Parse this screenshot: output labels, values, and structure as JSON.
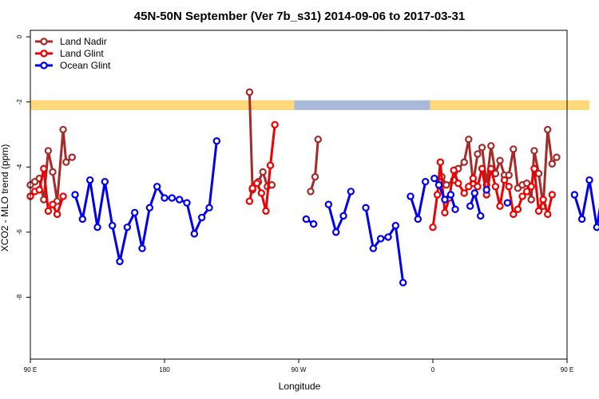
{
  "chart_data": {
    "type": "line",
    "title": "45N-50N September (Ver 7b_s31)   2014-09-06 to 2017-03-31",
    "xlabel": "Longitude",
    "ylabel": "XCO2 - MLO trend (ppm)",
    "xlim": [
      90,
      450
    ],
    "ylim": [
      -9.9,
      0.2
    ],
    "x_ticks": [
      {
        "value": 90,
        "label": "90 E"
      },
      {
        "value": 180,
        "label": "180"
      },
      {
        "value": 270,
        "label": "90 W"
      },
      {
        "value": 360,
        "label": "0"
      },
      {
        "value": 450,
        "label": "90 E"
      },
      {
        "value": 540,
        "label": "180"
      }
    ],
    "y_ticks": [
      {
        "value": 0,
        "label": "0"
      },
      {
        "value": -2,
        "label": "-2"
      },
      {
        "value": -4,
        "label": "-4"
      },
      {
        "value": -6,
        "label": "-6"
      },
      {
        "value": -8,
        "label": "-8"
      }
    ],
    "grid": false,
    "legend_position": "top-left",
    "land_mask": {
      "y_range": [
        -2.25,
        -1.95
      ],
      "land_color": "#FFD97A",
      "ocean_color": "#A8B9DC",
      "land_segments": [
        [
          90,
          267
        ],
        [
          358,
          465
        ]
      ]
    },
    "series": [
      {
        "name": "Land Nadir",
        "color": "#A52A2A",
        "segments": [
          [
            [
              90,
              -4.55
            ],
            [
              93,
              -4.45
            ],
            [
              96,
              -4.35
            ],
            [
              99,
              -5.0
            ],
            [
              102,
              -3.5
            ],
            [
              105,
              -4.15
            ],
            [
              108,
              -5.05
            ],
            [
              112,
              -2.85
            ],
            [
              114,
              -3.85
            ],
            [
              118,
              -3.7
            ]
          ],
          [
            [
              237,
              -1.7
            ],
            [
              239,
              -4.7
            ],
            [
              243,
              -4.45
            ],
            [
              246,
              -4.15
            ],
            [
              249,
              -4.6
            ],
            [
              252,
              -4.55
            ]
          ],
          [
            [
              278,
              -4.75
            ],
            [
              281,
              -4.3
            ],
            [
              283,
              -3.15
            ]
          ],
          [
            [
              366,
              -4.3
            ],
            [
              369,
              -4.55
            ],
            [
              374,
              -4.4
            ],
            [
              377,
              -4.05
            ],
            [
              381,
              -3.85
            ],
            [
              384,
              -3.15
            ],
            [
              387,
              -4.5
            ],
            [
              390,
              -3.6
            ],
            [
              393,
              -3.4
            ],
            [
              396,
              -4.55
            ],
            [
              399,
              -3.35
            ],
            [
              402,
              -4.2
            ],
            [
              405,
              -3.8
            ],
            [
              408,
              -4.25
            ],
            [
              411,
              -4.25
            ],
            [
              414,
              -3.45
            ],
            [
              417,
              -4.65
            ],
            [
              420,
              -4.55
            ],
            [
              423,
              -4.5
            ],
            [
              426,
              -5.0
            ],
            [
              428,
              -3.5
            ],
            [
              431,
              -4.2
            ],
            [
              434,
              -5.2
            ],
            [
              437,
              -2.85
            ],
            [
              440,
              -3.9
            ],
            [
              443,
              -3.7
            ]
          ]
        ]
      },
      {
        "name": "Land Glint",
        "color": "#EE0000",
        "segments": [
          [
            [
              90,
              -4.9
            ],
            [
              93,
              -4.75
            ],
            [
              96,
              -4.7
            ],
            [
              99,
              -4.05
            ],
            [
              102,
              -5.35
            ],
            [
              105,
              -5.15
            ],
            [
              108,
              -5.45
            ],
            [
              112,
              -4.9
            ]
          ],
          [
            [
              237,
              -5.05
            ],
            [
              239,
              -4.65
            ],
            [
              242,
              -4.5
            ],
            [
              245,
              -4.8
            ],
            [
              248,
              -5.35
            ],
            [
              251,
              -3.95
            ],
            [
              254,
              -2.7
            ]
          ],
          [
            [
              360,
              -5.85
            ],
            [
              363,
              -4.85
            ],
            [
              365,
              -3.85
            ],
            [
              368,
              -5.4
            ],
            [
              371,
              -4.95
            ],
            [
              374,
              -4.1
            ],
            [
              377,
              -4.5
            ],
            [
              381,
              -4.8
            ],
            [
              384,
              -4.6
            ],
            [
              387,
              -4.35
            ],
            [
              390,
              -4.6
            ],
            [
              393,
              -4.05
            ],
            [
              396,
              -4.85
            ],
            [
              399,
              -4.05
            ],
            [
              402,
              -4.6
            ],
            [
              405,
              -5.2
            ],
            [
              408,
              -4.4
            ],
            [
              411,
              -4.6
            ],
            [
              414,
              -5.45
            ],
            [
              417,
              -5.3
            ],
            [
              420,
              -4.9
            ],
            [
              423,
              -4.75
            ],
            [
              426,
              -4.6
            ],
            [
              428,
              -4.05
            ],
            [
              431,
              -5.35
            ],
            [
              434,
              -5.0
            ],
            [
              437,
              -5.45
            ],
            [
              440,
              -4.85
            ]
          ]
        ]
      },
      {
        "name": "Ocean Glint",
        "color": "#0000EE",
        "segments": [
          [
            [
              120,
              -4.85
            ],
            [
              125,
              -5.6
            ],
            [
              130,
              -4.4
            ],
            [
              135,
              -5.85
            ],
            [
              140,
              -4.45
            ],
            [
              145,
              -5.8
            ],
            [
              150,
              -6.9
            ],
            [
              155,
              -5.85
            ],
            [
              160,
              -5.4
            ],
            [
              165,
              -6.5
            ],
            [
              170,
              -5.25
            ],
            [
              175,
              -4.6
            ],
            [
              180,
              -4.95
            ],
            [
              185,
              -4.95
            ],
            [
              190,
              -5.0
            ],
            [
              195,
              -5.1
            ],
            [
              200,
              -6.05
            ],
            [
              205,
              -5.55
            ],
            [
              210,
              -5.25
            ],
            [
              215,
              -3.2
            ]
          ],
          [
            [
              275,
              -5.6
            ],
            [
              280,
              -5.75
            ]
          ],
          [
            [
              290,
              -5.15
            ],
            [
              295,
              -6.0
            ],
            [
              300,
              -5.5
            ],
            [
              305,
              -4.75
            ]
          ],
          [
            [
              315,
              -5.25
            ],
            [
              320,
              -6.5
            ],
            [
              325,
              -6.2
            ],
            [
              330,
              -6.15
            ],
            [
              335,
              -5.8
            ],
            [
              340,
              -7.55
            ]
          ],
          [
            [
              345,
              -4.9
            ],
            [
              350,
              -5.6
            ],
            [
              355,
              -4.45
            ]
          ],
          [
            [
              361,
              -4.35
            ],
            [
              364,
              -4.55
            ],
            [
              368,
              -5.0
            ],
            [
              372,
              -4.85
            ],
            [
              375,
              -5.3
            ]
          ],
          [
            [
              385,
              -5.2
            ],
            [
              388,
              -4.8
            ],
            [
              392,
              -5.5
            ]
          ],
          [
            [
              396,
              -4.7
            ]
          ],
          [
            [
              410,
              -5.1
            ]
          ],
          [
            [
              455,
              -4.85
            ],
            [
              460,
              -5.6
            ],
            [
              465,
              -4.4
            ],
            [
              470,
              -5.85
            ],
            [
              475,
              -4.45
            ],
            [
              480,
              -5.8
            ],
            [
              485,
              -6.9
            ],
            [
              490,
              -5.85
            ],
            [
              495,
              -5.4
            ]
          ]
        ]
      }
    ]
  }
}
